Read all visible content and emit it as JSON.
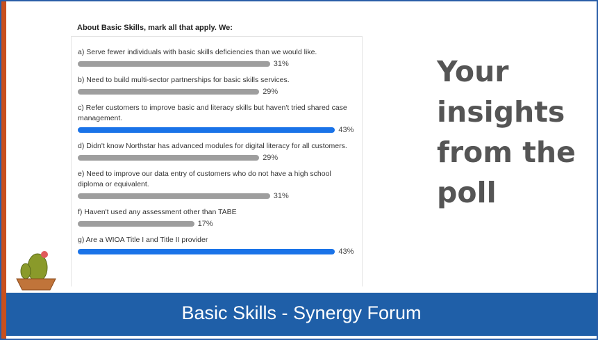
{
  "chart_data": {
    "type": "hbar",
    "title": "About Basic Skills, mark all that apply. We:",
    "categories": [
      "a) Serve fewer individuals with basic skills deficiencies than we would like.",
      "b) Need to build multi-sector partnerships for basic skills services.",
      "c) Refer customers to improve basic and literacy skills but haven't tried shared case management.",
      "d) Didn't know Northstar has advanced modules for digital literacy for all customers.",
      "e) Need to improve our data entry of customers who do not have a high school diploma or equivalent.",
      "f) Haven't used any assessment other than TABE",
      "g) Are a WIOA Title I and Title II provider"
    ],
    "values": [
      31,
      29,
      43,
      29,
      31,
      17,
      43
    ],
    "value_labels": [
      "31%",
      "29%",
      "43%",
      "29%",
      "31%",
      "17%",
      "43%"
    ],
    "colors": [
      "#9e9e9e",
      "#9e9e9e",
      "#1a73e8",
      "#9e9e9e",
      "#9e9e9e",
      "#9e9e9e",
      "#1a73e8"
    ]
  },
  "slide": {
    "heading": "Your insights from the poll",
    "footer": "Basic Skills - Synergy Forum"
  }
}
